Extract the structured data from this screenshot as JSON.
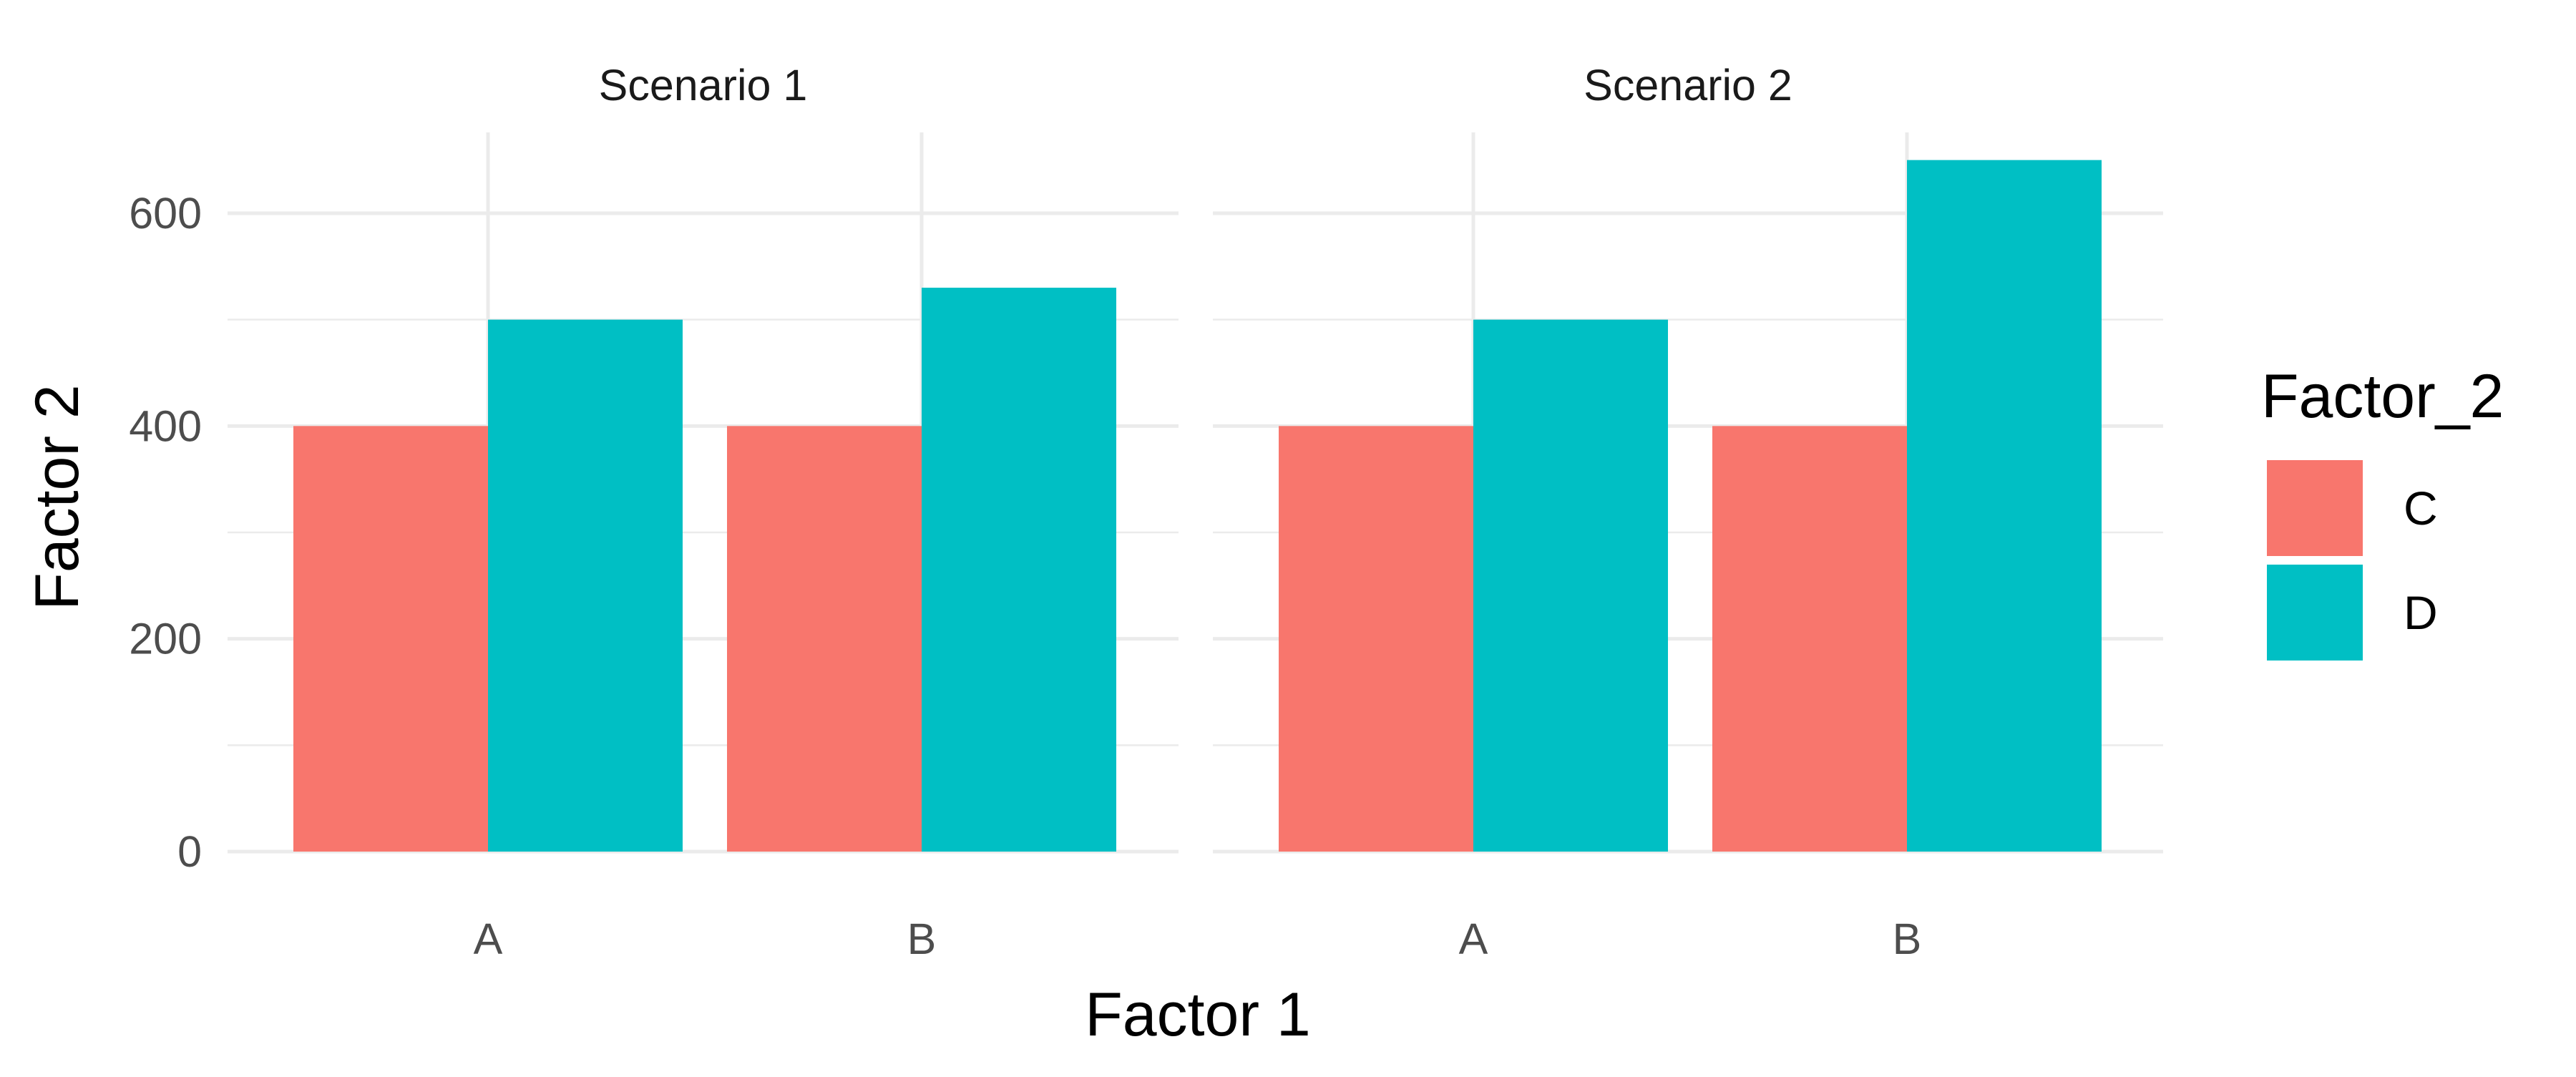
{
  "chart_data": {
    "type": "bar",
    "layout": "faceted-grouped-bar",
    "xlabel": "Factor 1",
    "ylabel": "Factor 2",
    "ylim": [
      0,
      676
    ],
    "yticks": [
      0,
      200,
      400,
      600
    ],
    "minor_gridlines": [
      100,
      300,
      500
    ],
    "grid": true,
    "categories": [
      "A",
      "B"
    ],
    "legend": {
      "title": "Factor_2",
      "placement": "right",
      "entries": [
        {
          "name": "C",
          "color": "#F8766D"
        },
        {
          "name": "D",
          "color": "#00BFC4"
        }
      ]
    },
    "facets": [
      {
        "label": "Scenario 1",
        "series": [
          {
            "name": "C",
            "values": [
              400,
              400
            ]
          },
          {
            "name": "D",
            "values": [
              500,
              530
            ]
          }
        ]
      },
      {
        "label": "Scenario 2",
        "series": [
          {
            "name": "C",
            "values": [
              400,
              400
            ]
          },
          {
            "name": "D",
            "values": [
              500,
              650
            ]
          }
        ]
      }
    ]
  }
}
